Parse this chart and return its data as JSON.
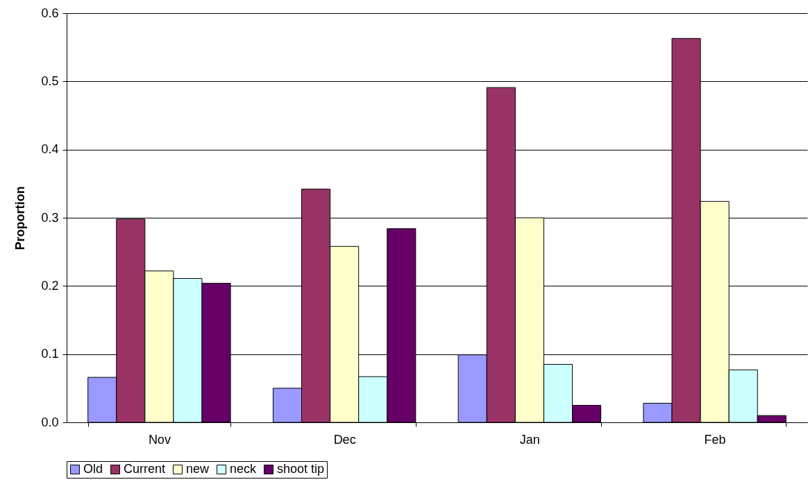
{
  "chart_data": {
    "type": "bar",
    "ylabel": "Proportion",
    "categories": [
      "Nov",
      "Dec",
      "Jan",
      "Feb"
    ],
    "series": [
      {
        "name": "Old",
        "color": "#9999ff",
        "values": [
          0.066,
          0.05,
          0.099,
          0.028
        ]
      },
      {
        "name": "Current",
        "color": "#993366",
        "values": [
          0.298,
          0.342,
          0.491,
          0.563
        ]
      },
      {
        "name": "new",
        "color": "#ffffcc",
        "values": [
          0.222,
          0.258,
          0.3,
          0.324
        ]
      },
      {
        "name": "neck",
        "color": "#ccffff",
        "values": [
          0.211,
          0.067,
          0.085,
          0.077
        ]
      },
      {
        "name": "shoot tip",
        "color": "#660066",
        "values": [
          0.204,
          0.284,
          0.025,
          0.01
        ]
      }
    ],
    "ylim": [
      0,
      0.6
    ],
    "yticks": [
      {
        "value": 0,
        "label": "0.0"
      },
      0.1,
      0.2,
      0.3,
      0.4,
      0.5,
      0.6
    ],
    "grid": "y",
    "legend": "bottom"
  }
}
